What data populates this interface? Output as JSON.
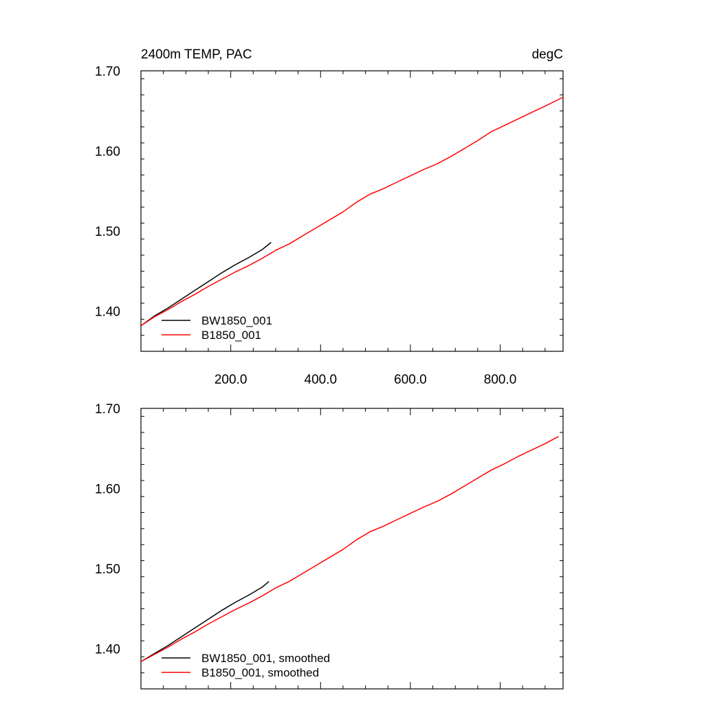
{
  "chart_data": [
    {
      "type": "line",
      "title": "2400m TEMP, PAC",
      "units": "degC",
      "xlim": [
        0,
        940
      ],
      "ylim": [
        1.35,
        1.7
      ],
      "x_tick_labels": [
        "200.0",
        "400.0",
        "600.0",
        "800.0"
      ],
      "x_ticks": [
        200,
        400,
        600,
        800
      ],
      "y_tick_labels": [
        "1.40",
        "1.50",
        "1.60",
        "1.70"
      ],
      "y_ticks": [
        1.4,
        1.5,
        1.6,
        1.7
      ],
      "legend_position": "bottom-left",
      "series": [
        {
          "name": "BW1850_001",
          "color": "#000000",
          "x": [
            0,
            30,
            60,
            90,
            120,
            150,
            180,
            210,
            240,
            270,
            290
          ],
          "y": [
            1.382,
            1.394,
            1.404,
            1.415,
            1.426,
            1.437,
            1.448,
            1.458,
            1.467,
            1.477,
            1.486
          ]
        },
        {
          "name": "B1850_001",
          "color": "#ff0000",
          "x": [
            0,
            30,
            60,
            90,
            120,
            150,
            180,
            210,
            240,
            270,
            300,
            330,
            360,
            390,
            420,
            450,
            480,
            510,
            540,
            570,
            600,
            630,
            660,
            690,
            720,
            750,
            780,
            810,
            840,
            870,
            900,
            940
          ],
          "y": [
            1.382,
            1.393,
            1.402,
            1.412,
            1.421,
            1.431,
            1.44,
            1.449,
            1.457,
            1.466,
            1.476,
            1.484,
            1.494,
            1.504,
            1.514,
            1.524,
            1.536,
            1.546,
            1.553,
            1.561,
            1.569,
            1.577,
            1.584,
            1.593,
            1.603,
            1.613,
            1.624,
            1.632,
            1.64,
            1.648,
            1.656,
            1.667
          ]
        }
      ]
    },
    {
      "type": "line",
      "title": "",
      "xlim": [
        0,
        940
      ],
      "ylim": [
        1.35,
        1.7
      ],
      "x_ticks": [
        200,
        400,
        600,
        800
      ],
      "y_tick_labels": [
        "1.40",
        "1.50",
        "1.60",
        "1.70"
      ],
      "y_ticks": [
        1.4,
        1.5,
        1.6,
        1.7
      ],
      "legend_position": "bottom-left",
      "series": [
        {
          "name": "BW1850_001, smoothed",
          "color": "#000000",
          "x": [
            0,
            30,
            60,
            90,
            120,
            150,
            180,
            210,
            240,
            270,
            285
          ],
          "y": [
            1.384,
            1.394,
            1.404,
            1.415,
            1.426,
            1.437,
            1.448,
            1.458,
            1.467,
            1.477,
            1.484
          ]
        },
        {
          "name": "B1850_001, smoothed",
          "color": "#ff0000",
          "x": [
            0,
            30,
            60,
            90,
            120,
            150,
            180,
            210,
            240,
            270,
            300,
            330,
            360,
            390,
            420,
            450,
            480,
            510,
            540,
            570,
            600,
            630,
            660,
            690,
            720,
            750,
            780,
            810,
            840,
            870,
            900,
            930
          ],
          "y": [
            1.384,
            1.393,
            1.402,
            1.412,
            1.421,
            1.431,
            1.44,
            1.449,
            1.457,
            1.466,
            1.476,
            1.484,
            1.494,
            1.504,
            1.514,
            1.524,
            1.536,
            1.546,
            1.553,
            1.561,
            1.569,
            1.577,
            1.584,
            1.593,
            1.603,
            1.613,
            1.623,
            1.631,
            1.64,
            1.648,
            1.656,
            1.665
          ]
        }
      ]
    }
  ]
}
